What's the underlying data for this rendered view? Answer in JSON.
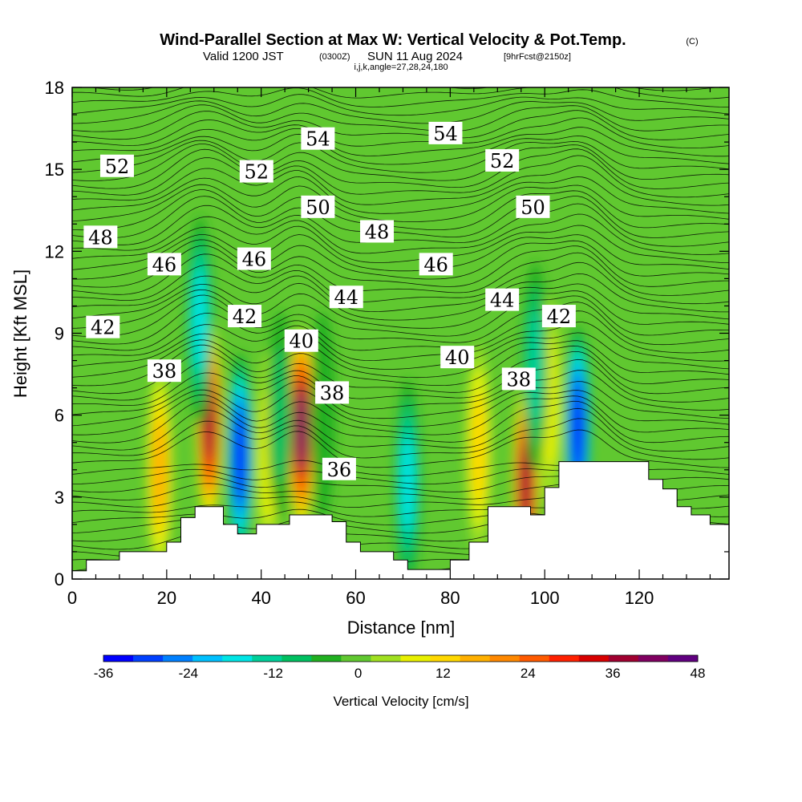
{
  "title": {
    "main": "Wind-Parallel Section at Max W: Vertical Velocity & Pot.Temp.",
    "copyright": "(C)",
    "valid_prefix": "Valid 1200 JST",
    "utc": "(0300Z)",
    "valid_date": "SUN 11 Aug 2024",
    "forecast": "[9hrFcst@2150z]",
    "indices": "i,j,k,angle=27,28,24,180"
  },
  "chart_data": {
    "type": "heatmap",
    "xlabel": "Distance [nm]",
    "ylabel": "Height [Kft MSL]",
    "xlim": [
      0,
      139
    ],
    "ylim": [
      0,
      18
    ],
    "x_ticks": [
      0,
      20,
      40,
      60,
      80,
      100,
      120
    ],
    "y_ticks": [
      0,
      3,
      6,
      9,
      12,
      15,
      18
    ],
    "colorbar": {
      "label": "Vertical Velocity [cm/s]",
      "min": -36,
      "max": 48,
      "tick_values": [
        -36,
        -24,
        -12,
        0,
        12,
        24,
        36,
        48
      ],
      "colors": [
        "#0000ff",
        "#0040ff",
        "#0080ff",
        "#00c0ff",
        "#00e5e5",
        "#00d09a",
        "#00c060",
        "#20b020",
        "#60c830",
        "#a0e020",
        "#e8f000",
        "#ffd800",
        "#ffb000",
        "#ff8800",
        "#ff5a00",
        "#ff2000",
        "#d80000",
        "#a00030",
        "#800060",
        "#600080"
      ]
    },
    "velocity_features": [
      {
        "x": 29,
        "y": 5.8,
        "value": 38
      },
      {
        "x": 35.5,
        "y": 4.5,
        "value": -33
      },
      {
        "x": 41.5,
        "y": 4.5,
        "value": 10
      },
      {
        "x": 48.5,
        "y": 5.5,
        "value": 40
      },
      {
        "x": 71,
        "y": 3.5,
        "value": -18
      },
      {
        "x": 86,
        "y": 4.8,
        "value": 12
      },
      {
        "x": 96,
        "y": 3.5,
        "value": 36
      },
      {
        "x": 107,
        "y": 5.5,
        "value": -33
      },
      {
        "x": 18.5,
        "y": 4.0,
        "value": 18
      },
      {
        "x": 101,
        "y": 6.5,
        "value": 10
      },
      {
        "x": 98,
        "y": 7.8,
        "value": -14
      },
      {
        "x": 27,
        "y": 9.5,
        "value": -18
      },
      {
        "x": 44,
        "y": 6.0,
        "value": -8
      },
      {
        "x": 53,
        "y": 6.0,
        "value": -6
      }
    ],
    "terrain": [
      [
        0,
        0.3
      ],
      [
        3,
        0.3
      ],
      [
        3,
        0.7
      ],
      [
        10,
        0.7
      ],
      [
        10,
        1.0
      ],
      [
        20,
        1.0
      ],
      [
        20,
        1.35
      ],
      [
        23,
        1.35
      ],
      [
        23,
        2.25
      ],
      [
        26,
        2.25
      ],
      [
        26,
        2.65
      ],
      [
        32,
        2.65
      ],
      [
        32,
        2.0
      ],
      [
        35,
        2.0
      ],
      [
        35,
        1.65
      ],
      [
        39,
        1.65
      ],
      [
        39,
        2.0
      ],
      [
        46,
        2.0
      ],
      [
        46,
        2.35
      ],
      [
        55,
        2.35
      ],
      [
        55,
        2.1
      ],
      [
        58,
        2.1
      ],
      [
        58,
        1.35
      ],
      [
        61,
        1.35
      ],
      [
        61,
        1.0
      ],
      [
        68,
        1.0
      ],
      [
        68,
        0.7
      ],
      [
        71,
        0.7
      ],
      [
        71,
        0.35
      ],
      [
        80,
        0.35
      ],
      [
        80,
        0.7
      ],
      [
        84,
        0.7
      ],
      [
        84,
        1.35
      ],
      [
        88,
        1.35
      ],
      [
        88,
        2.65
      ],
      [
        97,
        2.65
      ],
      [
        97,
        2.35
      ],
      [
        100,
        2.35
      ],
      [
        100,
        3.35
      ],
      [
        103,
        3.35
      ],
      [
        103,
        4.3
      ],
      [
        122,
        4.3
      ],
      [
        122,
        3.65
      ],
      [
        125,
        3.65
      ],
      [
        125,
        3.3
      ],
      [
        128,
        3.3
      ],
      [
        128,
        2.65
      ],
      [
        131,
        2.65
      ],
      [
        131,
        2.35
      ],
      [
        135,
        2.35
      ],
      [
        135,
        2.0
      ],
      [
        139,
        2.0
      ]
    ],
    "contour_labels": [
      {
        "text": "54",
        "x": 52,
        "y": 16.1
      },
      {
        "text": "54",
        "x": 79,
        "y": 16.3
      },
      {
        "text": "52",
        "x": 9.5,
        "y": 15.1
      },
      {
        "text": "52",
        "x": 39,
        "y": 14.9
      },
      {
        "text": "52",
        "x": 91,
        "y": 15.3
      },
      {
        "text": "50",
        "x": 52,
        "y": 13.6
      },
      {
        "text": "50",
        "x": 97.5,
        "y": 13.6
      },
      {
        "text": "48",
        "x": 6,
        "y": 12.5
      },
      {
        "text": "48",
        "x": 64.5,
        "y": 12.7
      },
      {
        "text": "46",
        "x": 19.5,
        "y": 11.5
      },
      {
        "text": "46",
        "x": 38.5,
        "y": 11.7
      },
      {
        "text": "46",
        "x": 77,
        "y": 11.5
      },
      {
        "text": "44",
        "x": 58,
        "y": 10.3
      },
      {
        "text": "44",
        "x": 91,
        "y": 10.2
      },
      {
        "text": "42",
        "x": 6.5,
        "y": 9.2
      },
      {
        "text": "42",
        "x": 36.5,
        "y": 9.6
      },
      {
        "text": "42",
        "x": 103,
        "y": 9.6
      },
      {
        "text": "40",
        "x": 48.5,
        "y": 8.7
      },
      {
        "text": "40",
        "x": 81.5,
        "y": 8.1
      },
      {
        "text": "38",
        "x": 19.5,
        "y": 7.6
      },
      {
        "text": "38",
        "x": 55,
        "y": 6.8
      },
      {
        "text": "38",
        "x": 94.5,
        "y": 7.3
      },
      {
        "text": "36",
        "x": 56.5,
        "y": 4.0
      }
    ]
  }
}
